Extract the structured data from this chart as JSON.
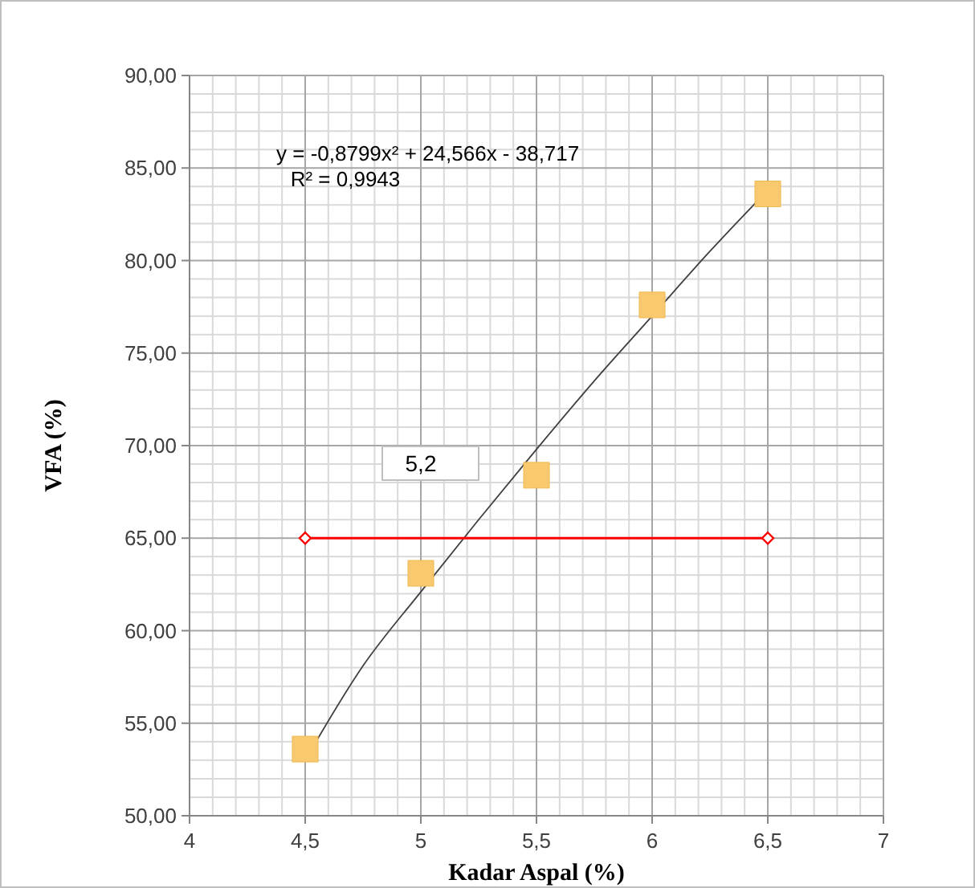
{
  "chart_data": {
    "type": "scatter",
    "xlabel": "Kadar Aspal (%)",
    "ylabel": "VFA (%)",
    "xlim": [
      4,
      7
    ],
    "xticks": [
      4,
      {
        "value": 4.5,
        "label": "4,5"
      },
      5,
      {
        "value": 5.5,
        "label": "5,5"
      },
      6,
      {
        "value": 6.5,
        "label": "6,5"
      },
      7
    ],
    "ylim": [
      50,
      90
    ],
    "yticks": [
      {
        "value": 50,
        "label": "50,00"
      },
      {
        "value": 55,
        "label": "55,00"
      },
      {
        "value": 60,
        "label": "60,00"
      },
      {
        "value": 65,
        "label": "65,00"
      },
      {
        "value": 70,
        "label": "70,00"
      },
      {
        "value": 75,
        "label": "75,00"
      },
      {
        "value": 80,
        "label": "80,00"
      },
      {
        "value": 85,
        "label": "85,00"
      },
      {
        "value": 90,
        "label": "90,00"
      }
    ],
    "grid": true,
    "series": [
      {
        "type": "line",
        "color": "#404040",
        "marker": "none",
        "x": [
          4.5,
          4.75,
          5,
          5.25,
          5.5,
          5.75,
          6,
          6.25,
          6.5
        ],
        "values": [
          53.0,
          58.1,
          62.1,
          66.0,
          69.8,
          73.5,
          77.0,
          80.5,
          83.8
        ]
      },
      {
        "type": "line",
        "color": "#ff0000",
        "marker": "diamond",
        "x": [
          4.5,
          6.5
        ],
        "values": [
          65,
          65
        ]
      },
      {
        "color": "#f9c970",
        "marker": "square",
        "x": [
          4.5,
          5,
          5.5,
          6,
          6.5
        ],
        "values": [
          53.6,
          63.1,
          68.4,
          77.6,
          83.6
        ]
      }
    ],
    "annotations": [
      "y = -0,8799x² + 24,566x - 38,717",
      "R² = 0,9943",
      "5,2"
    ]
  }
}
